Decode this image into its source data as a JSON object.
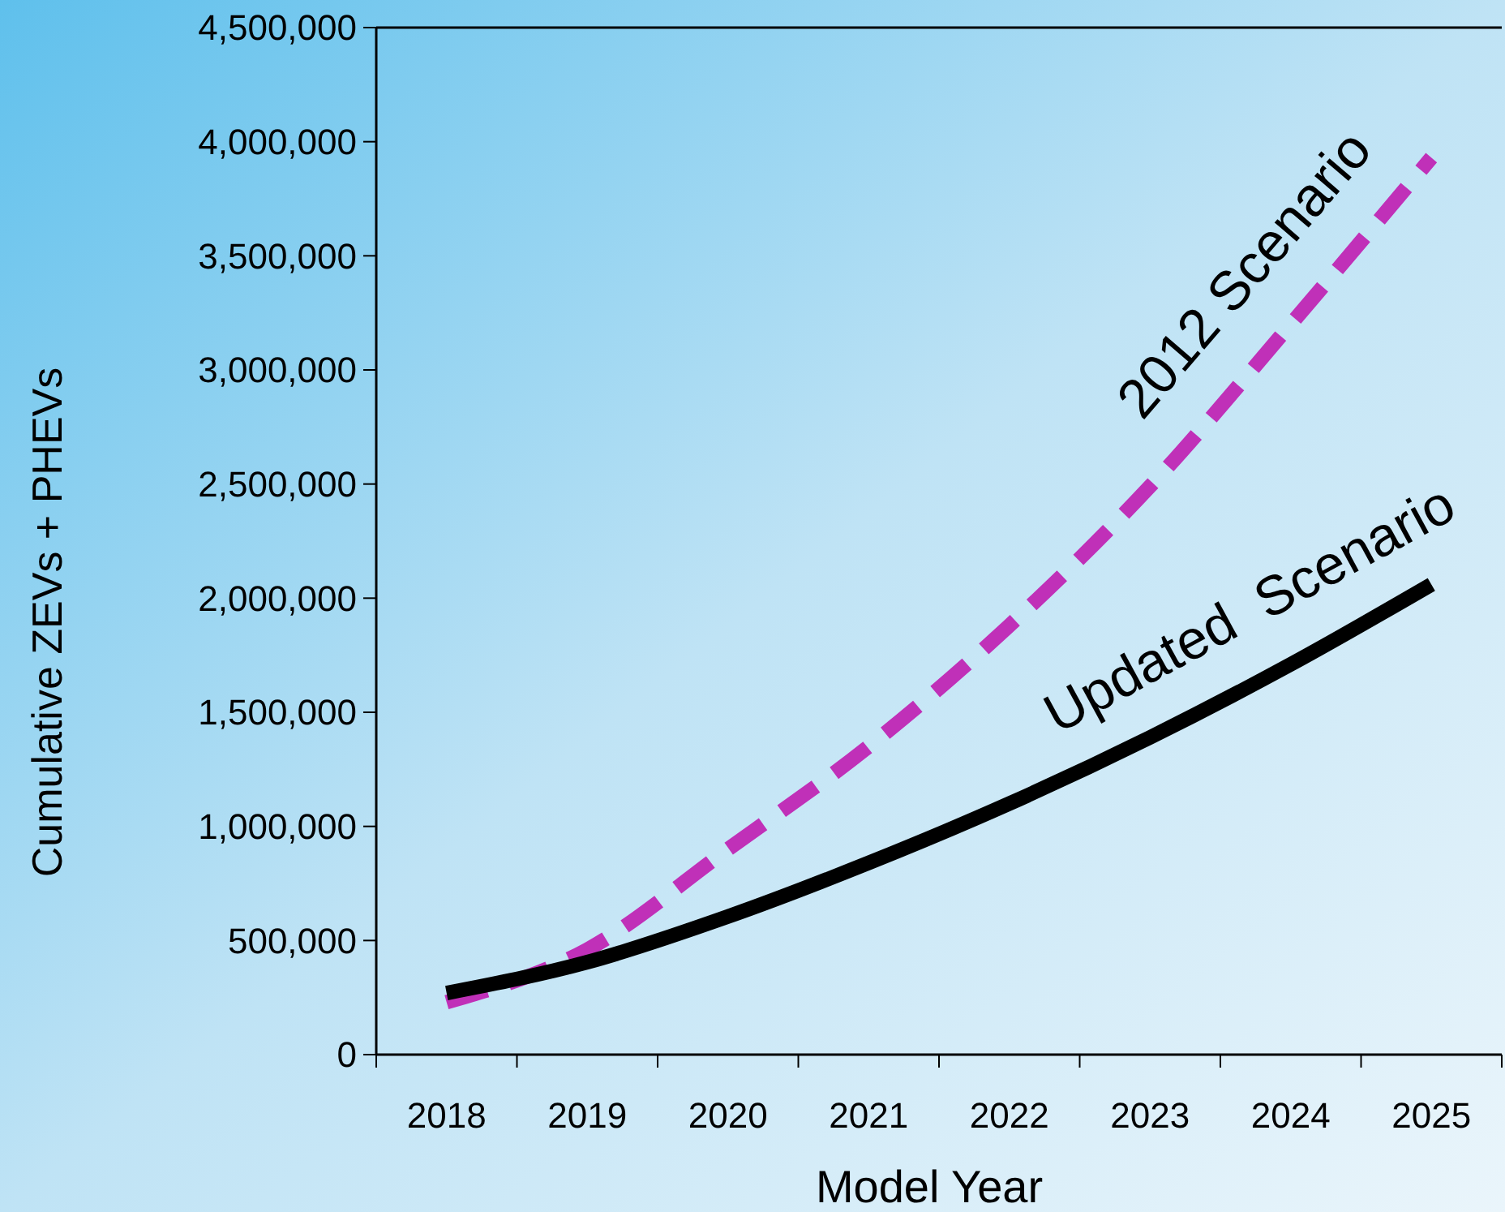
{
  "chart_data": {
    "type": "line",
    "xlabel": "Model Year",
    "ylabel": "Cumulative ZEVs + PHEVs",
    "categories": [
      "2018",
      "2019",
      "2020",
      "2021",
      "2022",
      "2023",
      "2024",
      "2025"
    ],
    "series": [
      {
        "name": "2012 Scenario",
        "color": "#c030b8",
        "line_style": "dashed",
        "values": [
          230000,
          460000,
          900000,
          1350000,
          1880000,
          2490000,
          3200000,
          3930000
        ]
      },
      {
        "name": "Updated  Scenario",
        "color": "#000000",
        "line_style": "solid",
        "values": [
          270000,
          405000,
          605000,
          840000,
          1100000,
          1390000,
          1710000,
          2060000
        ]
      }
    ],
    "ylim": [
      0,
      4500000
    ],
    "yticks": [
      {
        "value": 0,
        "label": "0"
      },
      {
        "value": 500000,
        "label": "500,000"
      },
      {
        "value": 1000000,
        "label": "1,000,000"
      },
      {
        "value": 1500000,
        "label": "1,500,000"
      },
      {
        "value": 2000000,
        "label": "2,000,000"
      },
      {
        "value": 2500000,
        "label": "2,500,000"
      },
      {
        "value": 3000000,
        "label": "3,000,000"
      },
      {
        "value": 3500000,
        "label": "3,500,000"
      },
      {
        "value": 4000000,
        "label": "4,000,000"
      },
      {
        "value": 4500000,
        "label": "4,500,000"
      }
    ],
    "grid": false,
    "legend": false,
    "marker": "none"
  }
}
